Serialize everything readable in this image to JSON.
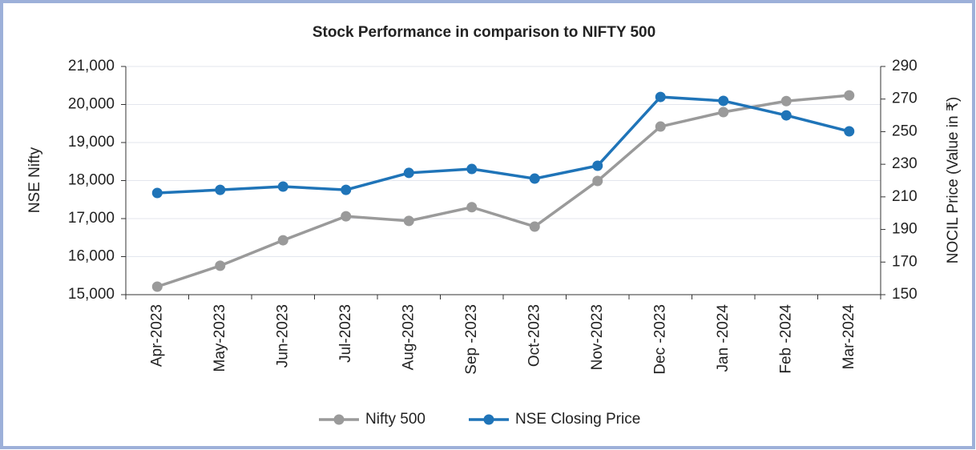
{
  "chart_data": {
    "type": "line",
    "title": "Stock Performance in comparison to NIFTY 500",
    "categories": [
      "Apr-2023",
      "May-2023",
      "Jun-2023",
      "Jul-2023",
      "Aug-2023",
      "Sep -2023",
      "Oct-2023",
      "Nov-2023",
      "Dec -2023",
      "Jan -2024",
      "Feb -2024",
      "Mar-2024"
    ],
    "series": [
      {
        "name": "Nifty 500",
        "color": "#9a9a9a",
        "axis": "y",
        "values": [
          15210,
          15760,
          16430,
          17060,
          16940,
          17300,
          16790,
          17990,
          19420,
          19800,
          20090,
          20240
        ]
      },
      {
        "name": "NSE Closing Price",
        "color": "#1f74b8",
        "axis": "y2",
        "values": [
          212.4,
          214.3,
          216.3,
          214.3,
          224.7,
          227.1,
          221.2,
          229.1,
          271.3,
          268.9,
          260.0,
          250.2
        ]
      }
    ],
    "ylabel": "NSE Nifty",
    "y2label": "NOCIL Price (Value in ₹)",
    "ylim": [
      15000,
      21000
    ],
    "yticks": [
      {
        "value": 15000,
        "label": "15,000"
      },
      {
        "value": 16000,
        "label": "16,000"
      },
      {
        "value": 17000,
        "label": "17,000"
      },
      {
        "value": 18000,
        "label": "18,000"
      },
      {
        "value": 19000,
        "label": "19,000"
      },
      {
        "value": 20000,
        "label": "20,000"
      },
      {
        "value": 21000,
        "label": "21,000"
      }
    ],
    "y2lim": [
      150,
      290
    ],
    "y2ticks": [
      150,
      170,
      190,
      210,
      230,
      250,
      270,
      290
    ],
    "grid": true,
    "legend": "bottom"
  }
}
